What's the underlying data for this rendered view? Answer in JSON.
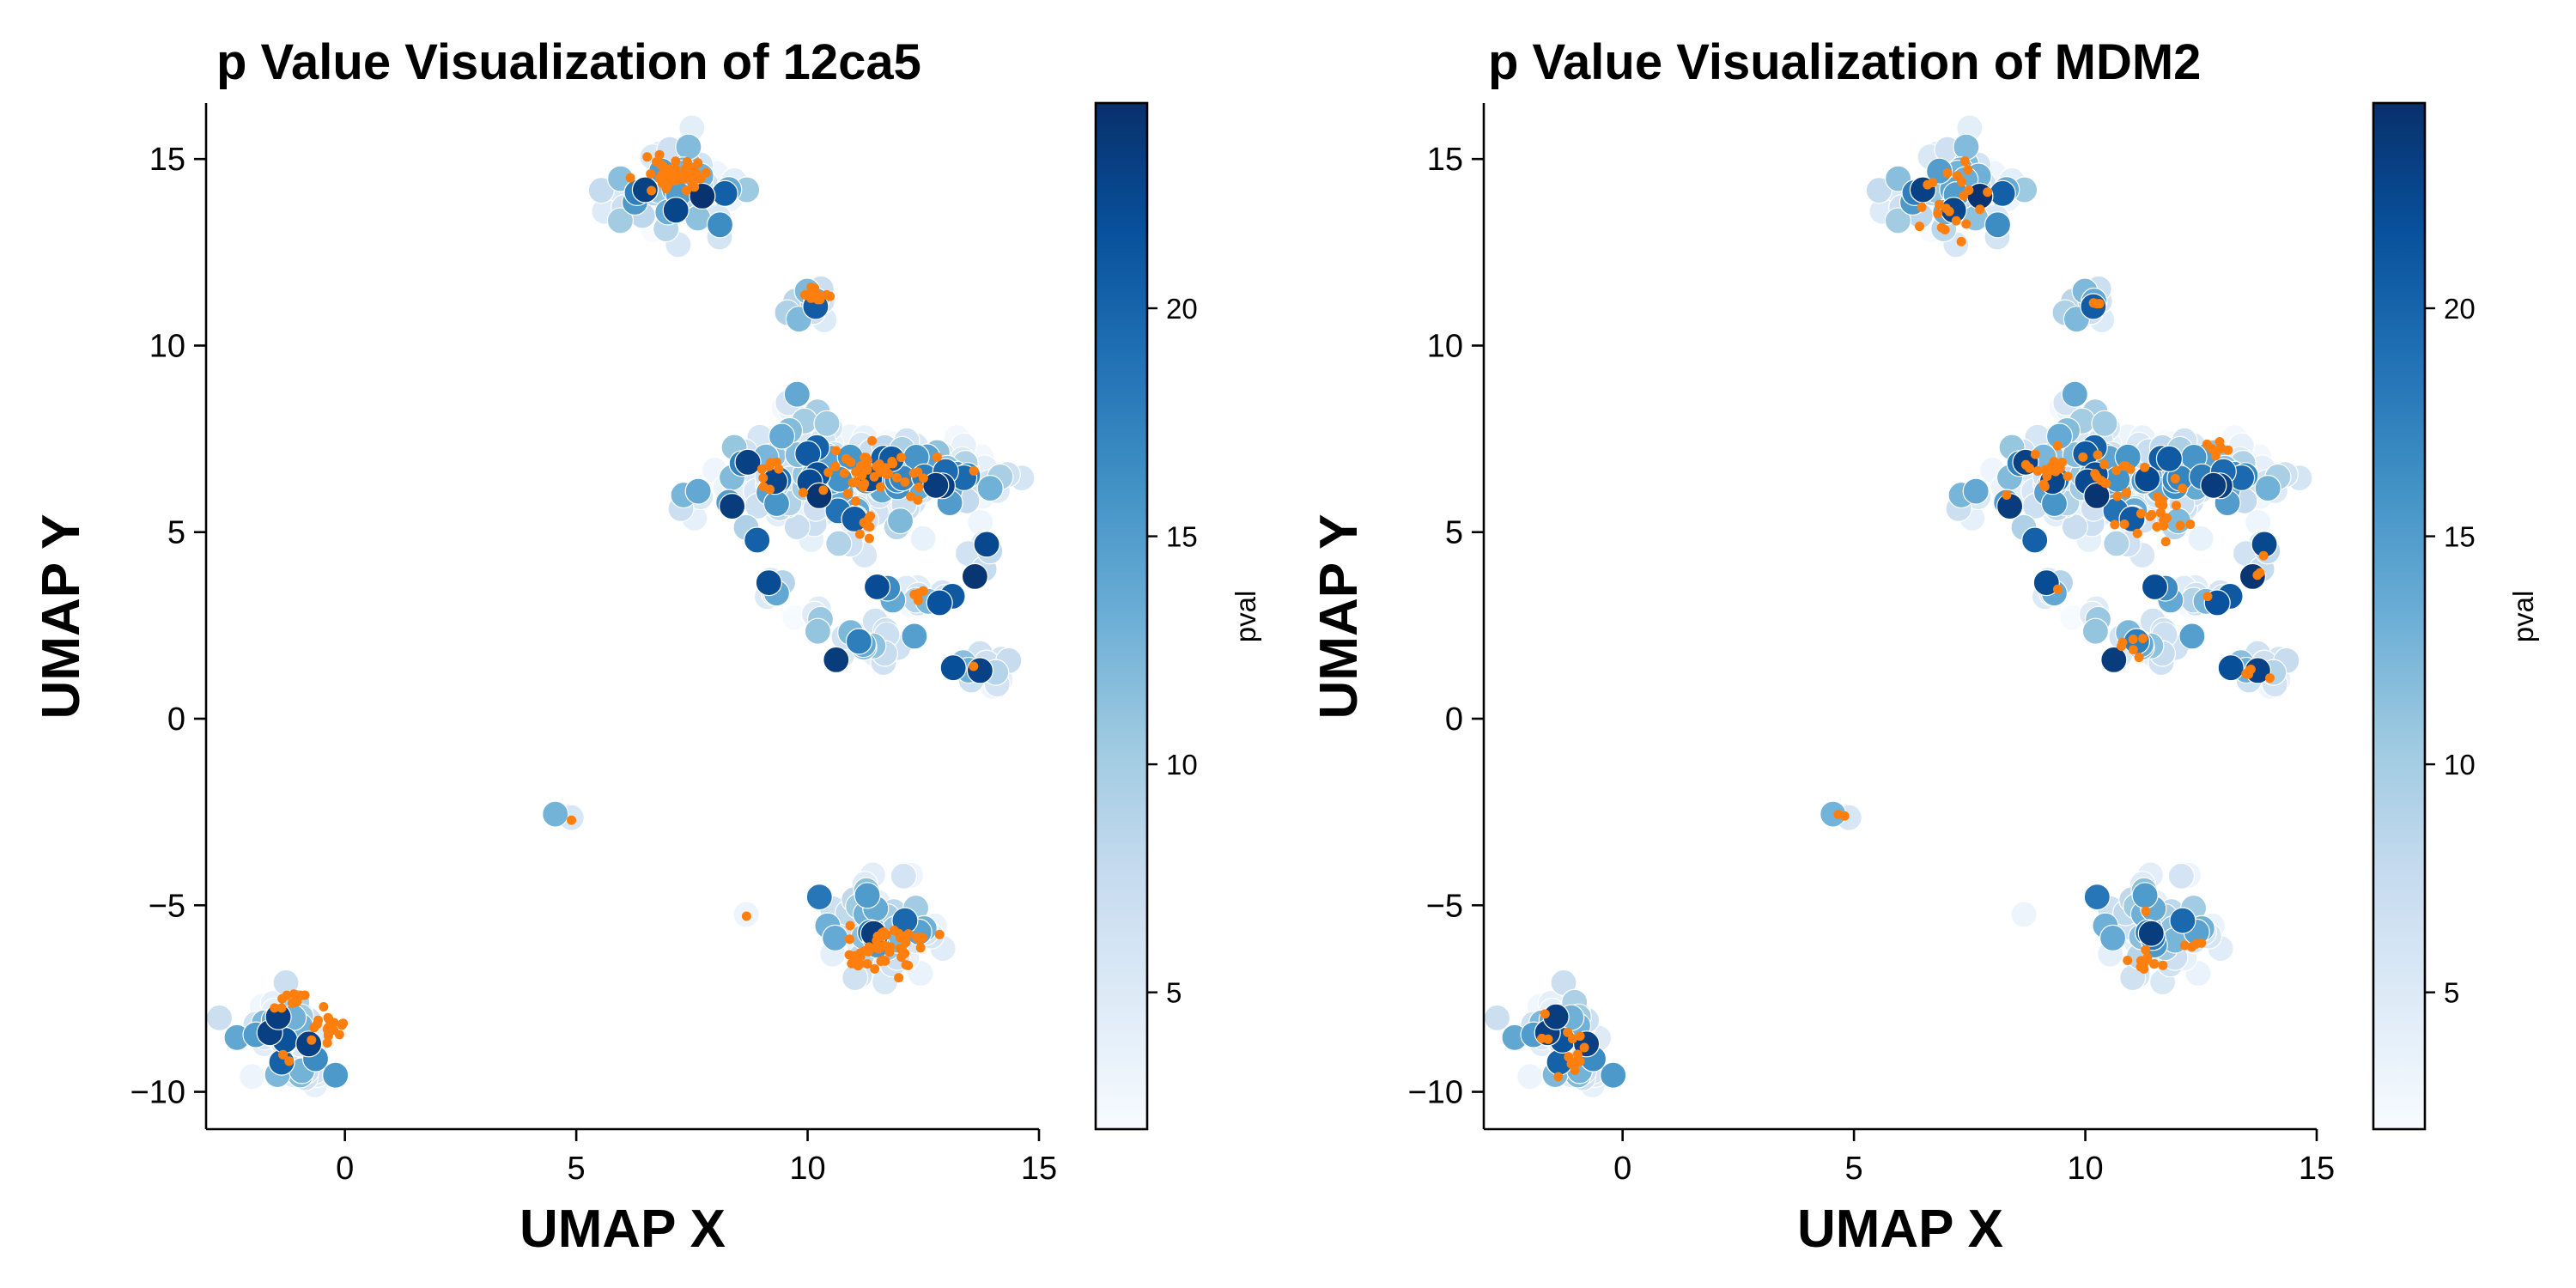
{
  "chart_data": [
    {
      "type": "scatter",
      "title": "p Value Visualization of 12ca5",
      "xlabel": "UMAP X",
      "ylabel": "UMAP Y",
      "xlim": [
        -3,
        15
      ],
      "ylim": [
        -11,
        16.5
      ],
      "xticks": [
        0,
        5,
        10,
        15
      ],
      "xtick_labels": [
        "0",
        "5",
        "10",
        "15"
      ],
      "yticks": [
        -10,
        -5,
        0,
        5,
        10,
        15
      ],
      "ytick_labels": [
        "−10",
        "−5",
        "0",
        "5",
        "10",
        "15"
      ],
      "grid": false,
      "colorbar": {
        "label": "pval",
        "cmap": "Blues",
        "range": [
          2,
          24.5
        ],
        "ticks": [
          5,
          10,
          15,
          20
        ],
        "tick_labels": [
          "5",
          "10",
          "15",
          "20"
        ],
        "color_low": "#f7fbff",
        "color_high": "#08306b"
      },
      "highlight_color": "#ff7f0e",
      "background_clusters": [
        {
          "cx": 7.0,
          "cy": 14.1,
          "sx": 0.7,
          "sy": 0.6,
          "n": 70
        },
        {
          "cx": 10.2,
          "cy": 11.1,
          "sx": 0.3,
          "sy": 0.3,
          "n": 18
        },
        {
          "cx": 9.6,
          "cy": 10.9,
          "sx": 0.1,
          "sy": 0.1,
          "n": 2
        },
        {
          "cx": 9.7,
          "cy": 8.5,
          "sx": 0.2,
          "sy": 0.2,
          "n": 4
        },
        {
          "cx": 9.6,
          "cy": 6.4,
          "sx": 0.9,
          "sy": 0.7,
          "n": 110
        },
        {
          "cx": 11.4,
          "cy": 6.4,
          "sx": 0.8,
          "sy": 0.7,
          "n": 110
        },
        {
          "cx": 13.1,
          "cy": 6.5,
          "sx": 0.6,
          "sy": 0.45,
          "n": 55
        },
        {
          "cx": 9.2,
          "cy": 3.6,
          "sx": 0.2,
          "sy": 0.2,
          "n": 6
        },
        {
          "cx": 10.1,
          "cy": 2.7,
          "sx": 0.2,
          "sy": 0.15,
          "n": 4
        },
        {
          "cx": 11.2,
          "cy": 2.1,
          "sx": 0.6,
          "sy": 0.3,
          "n": 22
        },
        {
          "cx": 12.2,
          "cy": 3.3,
          "sx": 0.4,
          "sy": 0.3,
          "n": 15
        },
        {
          "cx": 13.7,
          "cy": 1.4,
          "sx": 0.3,
          "sy": 0.3,
          "n": 18
        },
        {
          "cx": 13.8,
          "cy": 4.0,
          "sx": 0.15,
          "sy": 0.3,
          "n": 6
        },
        {
          "cx": 11.5,
          "cy": -5.6,
          "sx": 0.55,
          "sy": 0.6,
          "n": 70
        },
        {
          "cx": 12.5,
          "cy": -5.7,
          "sx": 0.3,
          "sy": 0.15,
          "n": 10
        },
        {
          "cx": 12.0,
          "cy": -4.2,
          "sx": 0.1,
          "sy": 0.1,
          "n": 1
        },
        {
          "cx": -1.2,
          "cy": -8.3,
          "sx": 0.5,
          "sy": 0.55,
          "n": 45
        },
        {
          "cx": -1.0,
          "cy": -9.4,
          "sx": 0.35,
          "sy": 0.2,
          "n": 16
        },
        {
          "cx": 4.6,
          "cy": -2.5,
          "sx": 0.05,
          "sy": 0.05,
          "n": 1
        },
        {
          "cx": 4.9,
          "cy": -2.7,
          "sx": 0.05,
          "sy": 0.05,
          "n": 1
        },
        {
          "cx": 8.7,
          "cy": -5.3,
          "sx": 0.05,
          "sy": 0.05,
          "n": 1
        }
      ],
      "highlight_clusters": [
        {
          "cx": 7.1,
          "cy": 14.6,
          "sx": 0.35,
          "sy": 0.25,
          "n": 45
        },
        {
          "cx": 10.2,
          "cy": 11.4,
          "sx": 0.15,
          "sy": 0.12,
          "n": 14
        },
        {
          "cx": 9.2,
          "cy": 6.6,
          "sx": 0.25,
          "sy": 0.25,
          "n": 8
        },
        {
          "cx": 11.5,
          "cy": 6.6,
          "sx": 0.6,
          "sy": 0.35,
          "n": 45
        },
        {
          "cx": 11.3,
          "cy": 5.1,
          "sx": 0.15,
          "sy": 0.2,
          "n": 8
        },
        {
          "cx": 12.4,
          "cy": 3.3,
          "sx": 0.12,
          "sy": 0.12,
          "n": 6
        },
        {
          "cx": 13.6,
          "cy": 1.4,
          "sx": 0.05,
          "sy": 0.05,
          "n": 1
        },
        {
          "cx": 4.9,
          "cy": -2.7,
          "sx": 0.02,
          "sy": 0.02,
          "n": 1
        },
        {
          "cx": 8.7,
          "cy": -5.3,
          "sx": 0.02,
          "sy": 0.02,
          "n": 1
        },
        {
          "cx": 11.5,
          "cy": -6.3,
          "sx": 0.3,
          "sy": 0.35,
          "n": 40
        },
        {
          "cx": 12.3,
          "cy": -5.8,
          "sx": 0.3,
          "sy": 0.12,
          "n": 12
        },
        {
          "cx": -1.1,
          "cy": -7.5,
          "sx": 0.15,
          "sy": 0.12,
          "n": 10
        },
        {
          "cx": -0.4,
          "cy": -8.2,
          "sx": 0.2,
          "sy": 0.2,
          "n": 18
        },
        {
          "cx": -1.3,
          "cy": -9.1,
          "sx": 0.08,
          "sy": 0.08,
          "n": 2
        }
      ]
    },
    {
      "type": "scatter",
      "title": "p Value Visualization of MDM2",
      "xlabel": "UMAP X",
      "ylabel": "UMAP Y",
      "xlim": [
        -3,
        15
      ],
      "ylim": [
        -11,
        16.5
      ],
      "xticks": [
        0,
        5,
        10,
        15
      ],
      "xtick_labels": [
        "0",
        "5",
        "10",
        "15"
      ],
      "yticks": [
        -10,
        -5,
        0,
        5,
        10,
        15
      ],
      "ytick_labels": [
        "−10",
        "−5",
        "0",
        "5",
        "10",
        "15"
      ],
      "grid": false,
      "colorbar": {
        "label": "pval",
        "cmap": "Blues",
        "range": [
          2,
          24.5
        ],
        "ticks": [
          5,
          10,
          15,
          20
        ],
        "tick_labels": [
          "5",
          "10",
          "15",
          "20"
        ],
        "color_low": "#f7fbff",
        "color_high": "#08306b"
      },
      "highlight_color": "#ff7f0e",
      "background_clusters": [
        {
          "cx": 7.0,
          "cy": 14.1,
          "sx": 0.7,
          "sy": 0.6,
          "n": 70
        },
        {
          "cx": 10.2,
          "cy": 11.1,
          "sx": 0.3,
          "sy": 0.3,
          "n": 18
        },
        {
          "cx": 9.6,
          "cy": 10.9,
          "sx": 0.1,
          "sy": 0.1,
          "n": 2
        },
        {
          "cx": 9.7,
          "cy": 8.5,
          "sx": 0.2,
          "sy": 0.2,
          "n": 4
        },
        {
          "cx": 9.6,
          "cy": 6.4,
          "sx": 0.9,
          "sy": 0.7,
          "n": 110
        },
        {
          "cx": 11.4,
          "cy": 6.4,
          "sx": 0.8,
          "sy": 0.7,
          "n": 110
        },
        {
          "cx": 13.1,
          "cy": 6.5,
          "sx": 0.6,
          "sy": 0.45,
          "n": 55
        },
        {
          "cx": 9.2,
          "cy": 3.6,
          "sx": 0.2,
          "sy": 0.2,
          "n": 6
        },
        {
          "cx": 10.1,
          "cy": 2.7,
          "sx": 0.2,
          "sy": 0.15,
          "n": 4
        },
        {
          "cx": 11.2,
          "cy": 2.1,
          "sx": 0.6,
          "sy": 0.3,
          "n": 22
        },
        {
          "cx": 12.2,
          "cy": 3.3,
          "sx": 0.4,
          "sy": 0.3,
          "n": 15
        },
        {
          "cx": 13.7,
          "cy": 1.4,
          "sx": 0.3,
          "sy": 0.3,
          "n": 18
        },
        {
          "cx": 13.8,
          "cy": 4.0,
          "sx": 0.15,
          "sy": 0.3,
          "n": 6
        },
        {
          "cx": 11.5,
          "cy": -5.6,
          "sx": 0.55,
          "sy": 0.6,
          "n": 70
        },
        {
          "cx": 12.5,
          "cy": -5.7,
          "sx": 0.3,
          "sy": 0.15,
          "n": 10
        },
        {
          "cx": 12.0,
          "cy": -4.2,
          "sx": 0.1,
          "sy": 0.1,
          "n": 1
        },
        {
          "cx": -1.2,
          "cy": -8.3,
          "sx": 0.5,
          "sy": 0.55,
          "n": 45
        },
        {
          "cx": -1.0,
          "cy": -9.4,
          "sx": 0.35,
          "sy": 0.2,
          "n": 16
        },
        {
          "cx": 4.6,
          "cy": -2.5,
          "sx": 0.05,
          "sy": 0.05,
          "n": 1
        },
        {
          "cx": 4.9,
          "cy": -2.7,
          "sx": 0.05,
          "sy": 0.05,
          "n": 1
        },
        {
          "cx": 8.7,
          "cy": -5.3,
          "sx": 0.05,
          "sy": 0.05,
          "n": 1
        }
      ],
      "highlight_clusters": [
        {
          "cx": 7.0,
          "cy": 14.0,
          "sx": 0.4,
          "sy": 0.5,
          "n": 22
        },
        {
          "cx": 10.2,
          "cy": 11.1,
          "sx": 0.1,
          "sy": 0.05,
          "n": 3
        },
        {
          "cx": 9.2,
          "cy": 6.8,
          "sx": 0.25,
          "sy": 0.3,
          "n": 18
        },
        {
          "cx": 10.5,
          "cy": 6.7,
          "sx": 0.5,
          "sy": 0.4,
          "n": 14
        },
        {
          "cx": 11.6,
          "cy": 5.6,
          "sx": 0.5,
          "sy": 0.5,
          "n": 22
        },
        {
          "cx": 13.0,
          "cy": 7.2,
          "sx": 0.15,
          "sy": 0.1,
          "n": 8
        },
        {
          "cx": 8.3,
          "cy": 6.0,
          "sx": 0.05,
          "sy": 0.05,
          "n": 1
        },
        {
          "cx": 9.4,
          "cy": 3.5,
          "sx": 0.05,
          "sy": 0.05,
          "n": 1
        },
        {
          "cx": 11.0,
          "cy": 1.9,
          "sx": 0.3,
          "sy": 0.15,
          "n": 6
        },
        {
          "cx": 12.6,
          "cy": 3.3,
          "sx": 0.05,
          "sy": 0.05,
          "n": 1
        },
        {
          "cx": 13.8,
          "cy": 4.0,
          "sx": 0.05,
          "sy": 0.15,
          "n": 3
        },
        {
          "cx": 13.6,
          "cy": 1.3,
          "sx": 0.15,
          "sy": 0.12,
          "n": 5
        },
        {
          "cx": 4.7,
          "cy": -2.6,
          "sx": 0.1,
          "sy": 0.05,
          "n": 2
        },
        {
          "cx": 11.4,
          "cy": -6.5,
          "sx": 0.15,
          "sy": 0.2,
          "n": 10
        },
        {
          "cx": 11.3,
          "cy": -5.2,
          "sx": 0.05,
          "sy": 0.05,
          "n": 1
        },
        {
          "cx": 12.2,
          "cy": -6.0,
          "sx": 0.15,
          "sy": 0.1,
          "n": 4
        },
        {
          "cx": -1.2,
          "cy": -8.6,
          "sx": 0.25,
          "sy": 0.4,
          "n": 10
        },
        {
          "cx": -0.9,
          "cy": -9.2,
          "sx": 0.15,
          "sy": 0.1,
          "n": 5
        }
      ]
    }
  ]
}
